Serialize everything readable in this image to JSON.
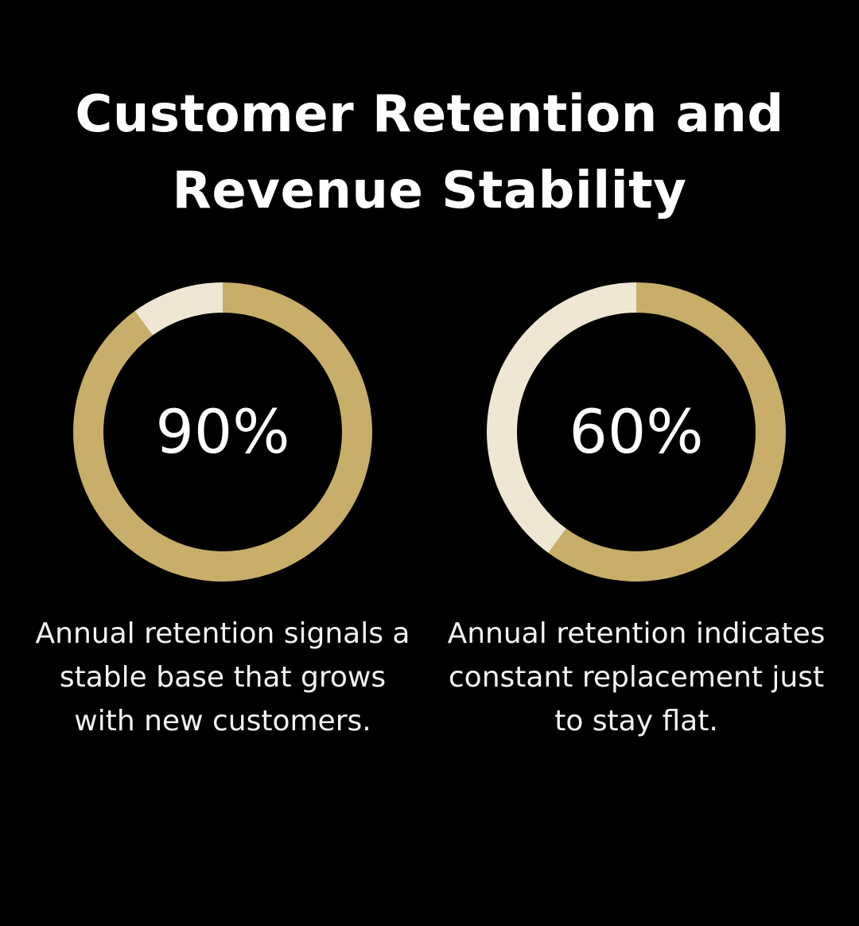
{
  "title": {
    "line1": "Customer Retention and",
    "line2": "Revenue Stability"
  },
  "colors": {
    "background": "#000000",
    "filled": "#c8ae69",
    "remainder": "#efe6d4",
    "text": "#ffffff"
  },
  "chart_data": [
    {
      "type": "pie",
      "style": "donut",
      "value_percent": 90,
      "remainder_percent": 10,
      "center_label": "90%",
      "caption": [
        "Annual retention signals a",
        "stable base that grows",
        "with new customers."
      ]
    },
    {
      "type": "pie",
      "style": "donut",
      "value_percent": 60,
      "remainder_percent": 40,
      "center_label": "60%",
      "caption": [
        "Annual retention indicates",
        "constant replacement just",
        "to stay flat."
      ]
    }
  ]
}
